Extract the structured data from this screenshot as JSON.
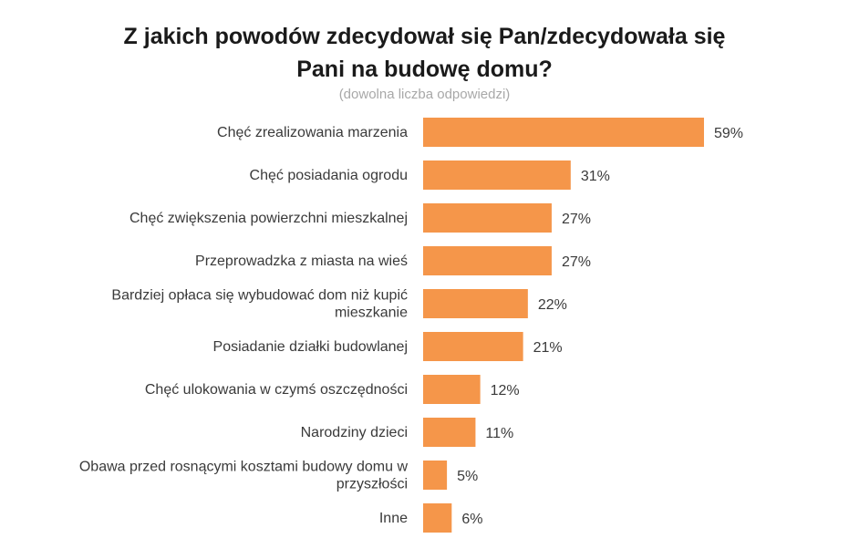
{
  "chart_data": {
    "type": "bar",
    "orientation": "horizontal",
    "title_lines": [
      "Z jakich powodów zdecydował się Pan/zdecydowała się",
      "Pani na budowę domu?"
    ],
    "subtitle": "(dowolna liczba odpowiedzi)",
    "categories": [
      [
        "Chęć zrealizowania marzenia"
      ],
      [
        "Chęć posiadania ogrodu"
      ],
      [
        "Chęć zwiększenia powierzchni mieszkalnej"
      ],
      [
        "Przeprowadzka z miasta na wieś"
      ],
      [
        "Bardziej opłaca się wybudować dom niż kupić",
        "mieszkanie"
      ],
      [
        "Posiadanie działki budowlanej"
      ],
      [
        "Chęć ulokowania w czymś oszczędności"
      ],
      [
        "Narodziny dzieci"
      ],
      [
        "Obawa przed rosnącymi kosztami budowy domu w",
        "przyszłości"
      ],
      [
        "Inne"
      ]
    ],
    "values": [
      59,
      31,
      27,
      27,
      22,
      21,
      12,
      11,
      5,
      6
    ],
    "value_labels": [
      "59%",
      "31%",
      "27%",
      "27%",
      "22%",
      "21%",
      "12%",
      "11%",
      "5%",
      "6%"
    ],
    "unit": "%",
    "xlabel": "",
    "ylabel": "",
    "grid": false,
    "legend": "none"
  },
  "colors": {
    "bar": "#F5964A",
    "text": "#3a3a3a",
    "title": "#1a1a1a",
    "subtitle": "#a8a8a8"
  }
}
